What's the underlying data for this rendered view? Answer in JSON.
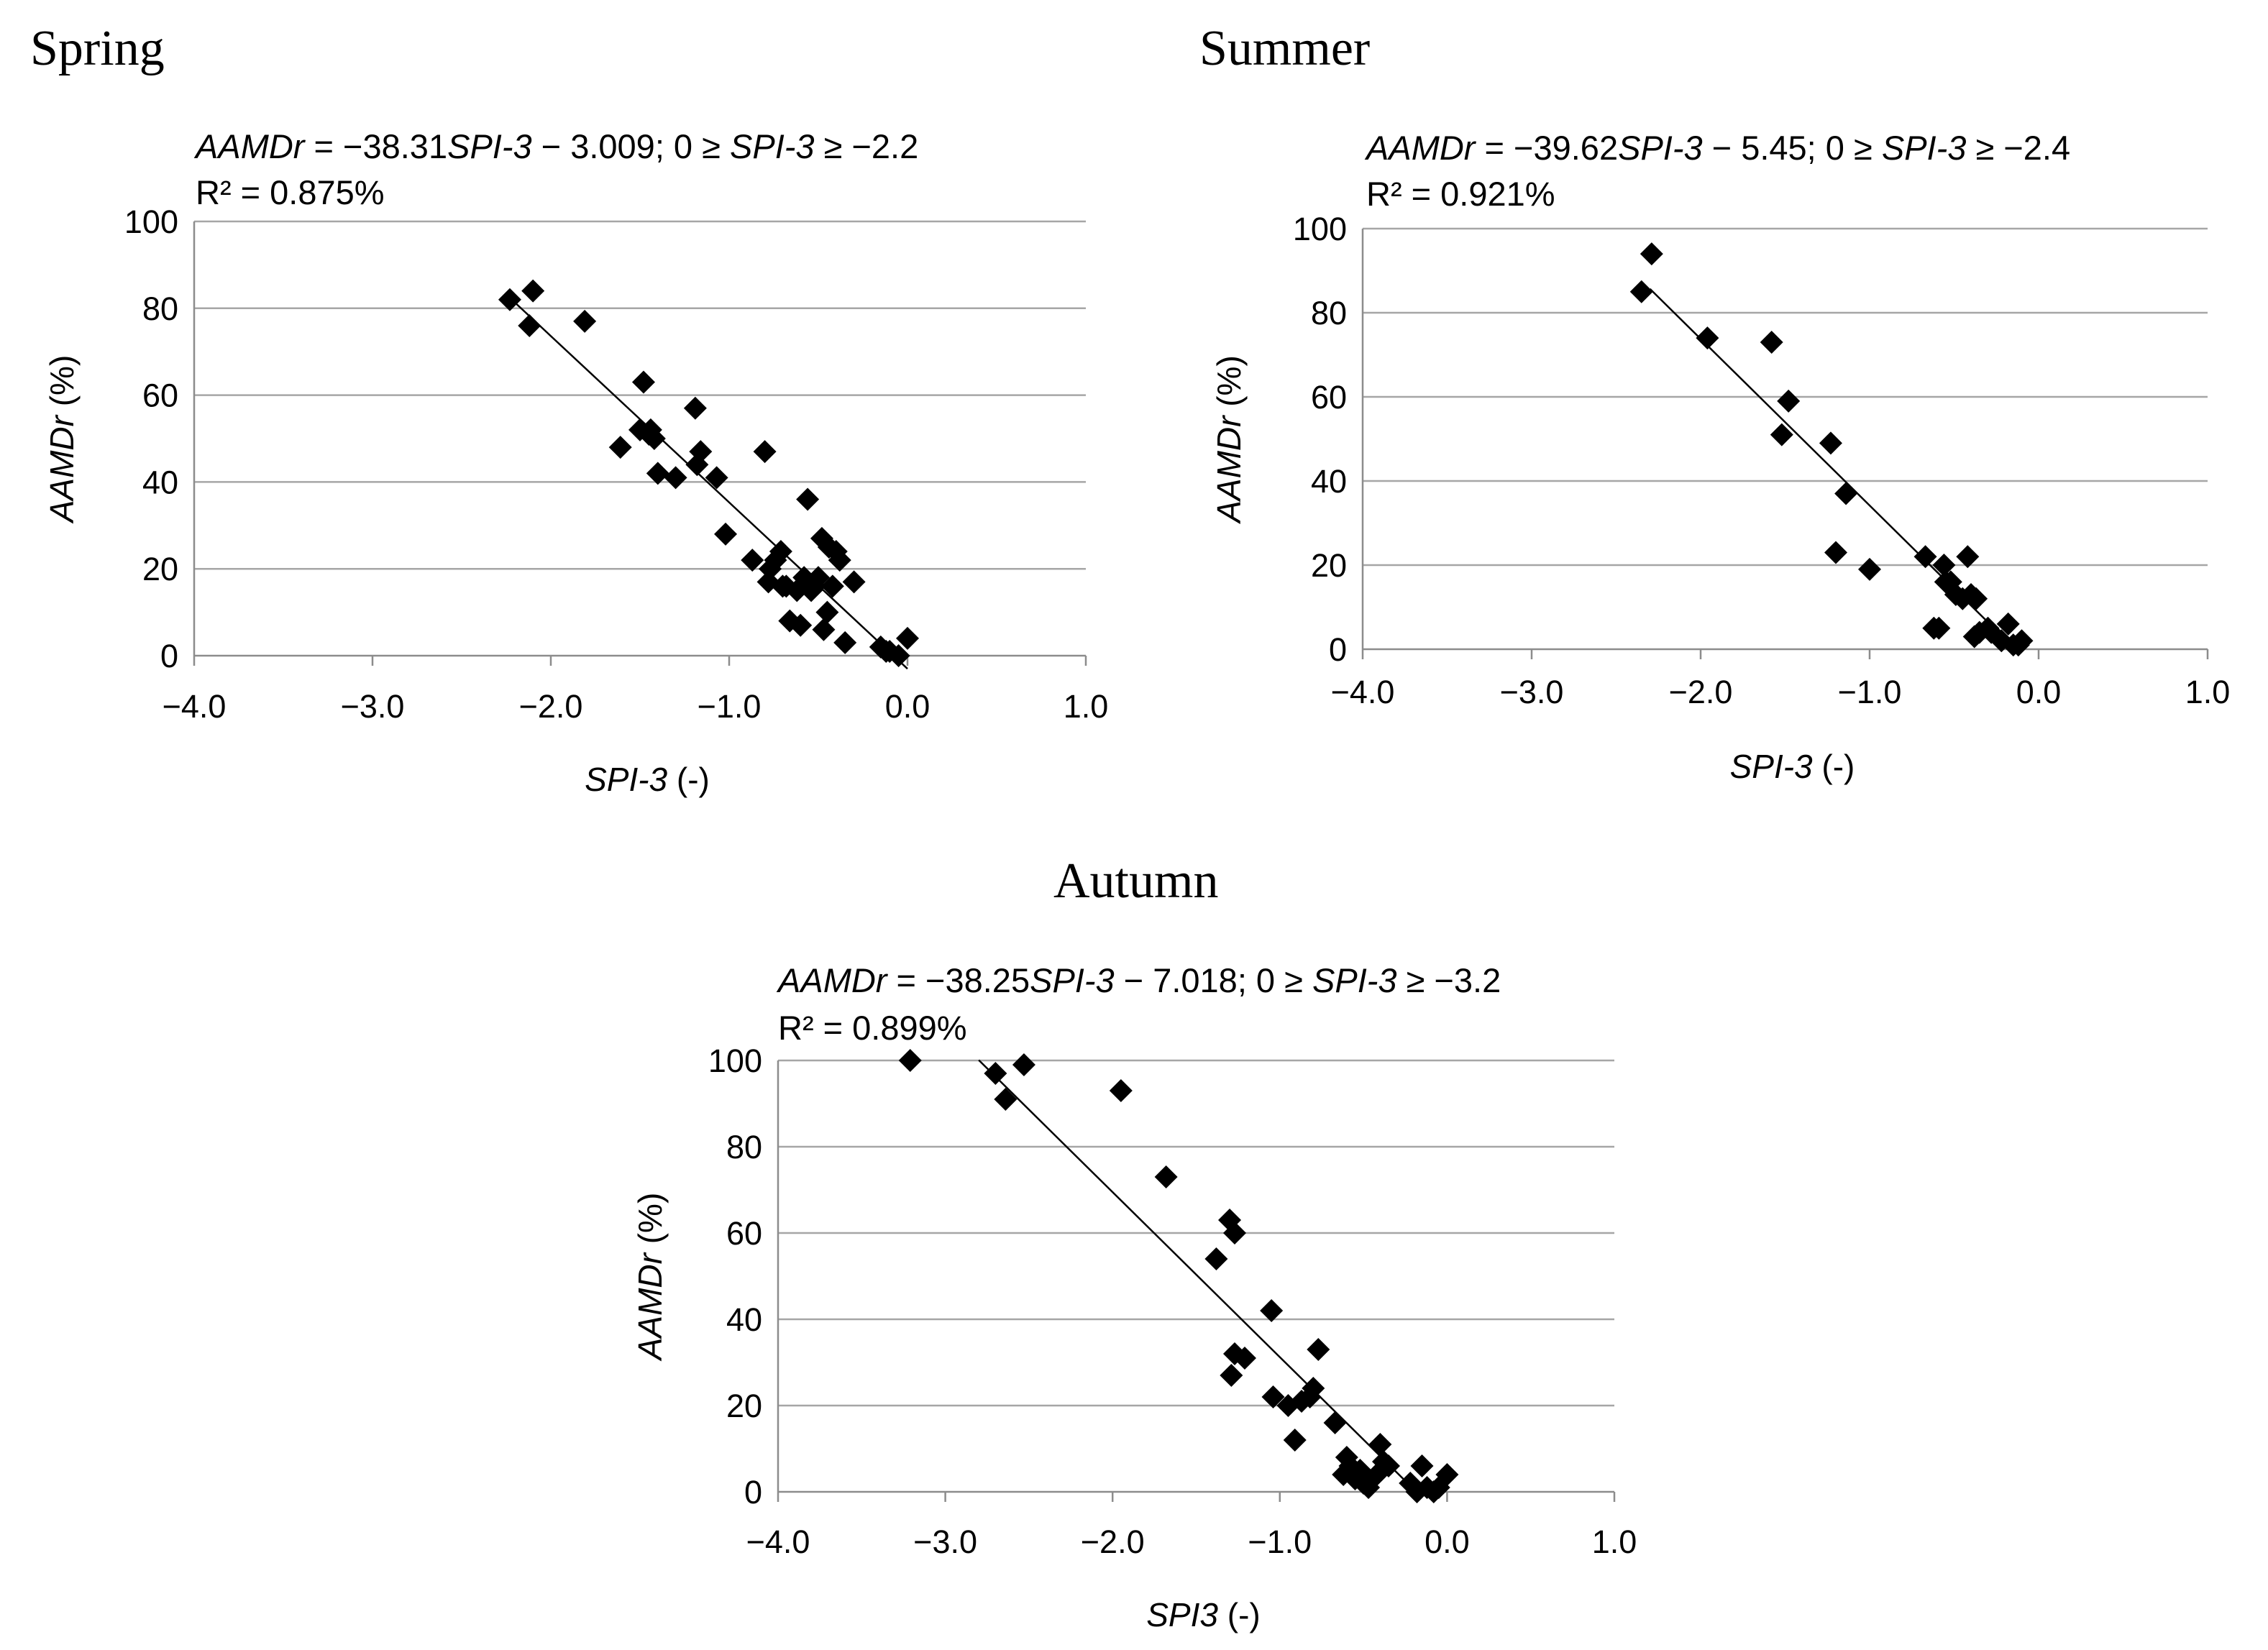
{
  "chart_data": [
    {
      "type": "scatter",
      "title": "Spring",
      "equation": {
        "lhs": "AAMDr",
        "text1": " = −38.31",
        "var1": "SPI-3",
        "text2": " − 3.009; 0 ≥ ",
        "var2": "SPI-3",
        "text3": " ≥  −2.2"
      },
      "r2": "R² = 0.875%",
      "xlabel_italic": "SPI-3",
      "xlabel_rest": " (-)",
      "ylabel_italic": "AAMDr",
      "ylabel_rest": " (%)",
      "xlim": [
        -4.0,
        1.0
      ],
      "ylim": [
        0,
        100
      ],
      "xticks": [
        -4.0,
        -3.0,
        -2.0,
        -1.0,
        0.0,
        1.0
      ],
      "xtick_labels": [
        "−4.0",
        "−3.0",
        "−2.0",
        "−1.0",
        "0.0",
        "1.0"
      ],
      "yticks": [
        0,
        20,
        40,
        60,
        80,
        100
      ],
      "ytick_labels": [
        "0",
        "20",
        "40",
        "60",
        "80",
        "100"
      ],
      "trendline": {
        "slope": -38.31,
        "intercept": -3.009,
        "x_from": -2.2,
        "x_to": 0
      },
      "x": [
        -2.23,
        -2.12,
        -2.1,
        -1.81,
        -1.61,
        -1.5,
        -1.48,
        -1.45,
        -1.44,
        -1.42,
        -1.4,
        -1.3,
        -1.19,
        -1.18,
        -1.16,
        -1.07,
        -1.02,
        -0.87,
        -0.8,
        -0.78,
        -0.77,
        -0.74,
        -0.71,
        -0.7,
        -0.68,
        -0.66,
        -0.62,
        -0.6,
        -0.58,
        -0.56,
        -0.54,
        -0.52,
        -0.5,
        -0.48,
        -0.47,
        -0.45,
        -0.44,
        -0.42,
        -0.4,
        -0.38,
        -0.35,
        -0.3,
        -0.15,
        -0.12,
        -0.1,
        -0.05,
        0.0
      ],
      "y": [
        82,
        76,
        84,
        77,
        48,
        52,
        63,
        51,
        52,
        50,
        42,
        41,
        57,
        44,
        47,
        41,
        28,
        22,
        47,
        17,
        20,
        22,
        24,
        16,
        16,
        8,
        15,
        7,
        18,
        36,
        15,
        16,
        18,
        27,
        6,
        10,
        25,
        16,
        24,
        22,
        3,
        17,
        2,
        1,
        1,
        0,
        4
      ]
    },
    {
      "type": "scatter",
      "title": "Summer",
      "equation": {
        "lhs": "AAMDr",
        "text1": " = −39.62",
        "var1": "SPI-3",
        "text2": " − 5.45; 0 ≥ ",
        "var2": "SPI-3",
        "text3": " ≥ −2.4"
      },
      "r2": "R² = 0.921%",
      "xlabel_italic": "SPI-3",
      "xlabel_rest": " (-)",
      "ylabel_italic": "AAMDr",
      "ylabel_rest": " (%)",
      "xlim": [
        -4.0,
        1.0
      ],
      "ylim": [
        0,
        100
      ],
      "xticks": [
        -4.0,
        -3.0,
        -2.0,
        -1.0,
        0.0,
        1.0
      ],
      "xtick_labels": [
        "−4.0",
        "−3.0",
        "−2.0",
        "−1.0",
        "0.0",
        "1.0"
      ],
      "yticks": [
        0,
        20,
        40,
        60,
        80,
        100
      ],
      "ytick_labels": [
        "0",
        "20",
        "40",
        "60",
        "80",
        "100"
      ],
      "trendline": {
        "slope": -39.62,
        "intercept": -5.45,
        "x_from": -2.3,
        "x_to": -0.12
      },
      "x": [
        -2.35,
        -2.29,
        -1.96,
        -1.58,
        -1.48,
        -1.52,
        -1.23,
        -1.2,
        -1.14,
        -1.0,
        -0.67,
        -0.62,
        -0.59,
        -0.56,
        -0.55,
        -0.52,
        -0.49,
        -0.45,
        -0.42,
        -0.4,
        -0.38,
        -0.37,
        -0.35,
        -0.3,
        -0.28,
        -0.22,
        -0.18,
        -0.15,
        -0.12,
        -0.1
      ],
      "y": [
        85,
        94,
        74,
        73,
        59,
        51,
        49,
        23,
        37,
        19,
        22,
        5,
        5,
        20,
        16,
        16,
        13,
        12,
        22,
        13,
        3,
        12,
        4,
        5,
        4,
        2,
        6,
        1,
        1,
        2
      ]
    },
    {
      "type": "scatter",
      "title": "Autumn",
      "equation": {
        "lhs": "AAMDr",
        "text1": " = −38.25",
        "var1": "SPI-3",
        "text2": " − 7.018; 0 ≥ ",
        "var2": "SPI-3",
        "text3": " ≥ −3.2"
      },
      "r2": "R² = 0.899%",
      "xlabel_italic": "SPI3",
      "xlabel_rest": " (-)",
      "ylabel_italic": "AAMDr",
      "ylabel_rest": " (%)",
      "xlim": [
        -4.0,
        1.0
      ],
      "ylim": [
        0,
        100
      ],
      "xticks": [
        -4.0,
        -3.0,
        -2.0,
        -1.0,
        0.0,
        1.0
      ],
      "xtick_labels": [
        "−4.0",
        "−3.0",
        "−2.0",
        "−1.0",
        "0.0",
        "1.0"
      ],
      "yticks": [
        0,
        20,
        40,
        60,
        80,
        100
      ],
      "ytick_labels": [
        "0",
        "20",
        "40",
        "60",
        "80",
        "100"
      ],
      "trendline": {
        "slope": -38.25,
        "intercept": -7.018,
        "x_from": -2.8,
        "x_to": -0.2
      },
      "x": [
        -3.21,
        -2.7,
        -2.64,
        -2.53,
        -1.95,
        -1.68,
        -1.38,
        -1.3,
        -1.27,
        -1.29,
        -1.27,
        -1.21,
        -1.05,
        -1.04,
        -0.95,
        -0.91,
        -0.87,
        -0.82,
        -0.8,
        -0.77,
        -0.67,
        -0.62,
        -0.6,
        -0.58,
        -0.55,
        -0.52,
        -0.5,
        -0.47,
        -0.42,
        -0.4,
        -0.38,
        -0.35,
        -0.22,
        -0.18,
        -0.15,
        -0.12,
        -0.08,
        -0.05,
        0.0
      ],
      "y": [
        100,
        97,
        91,
        99,
        93,
        73,
        54,
        63,
        60,
        27,
        32,
        31,
        42,
        22,
        20,
        12,
        21,
        22,
        24,
        33,
        16,
        4,
        8,
        6,
        3,
        5,
        2,
        1,
        4,
        11,
        7,
        6,
        2,
        0,
        6,
        1,
        0,
        1,
        4
      ]
    }
  ]
}
